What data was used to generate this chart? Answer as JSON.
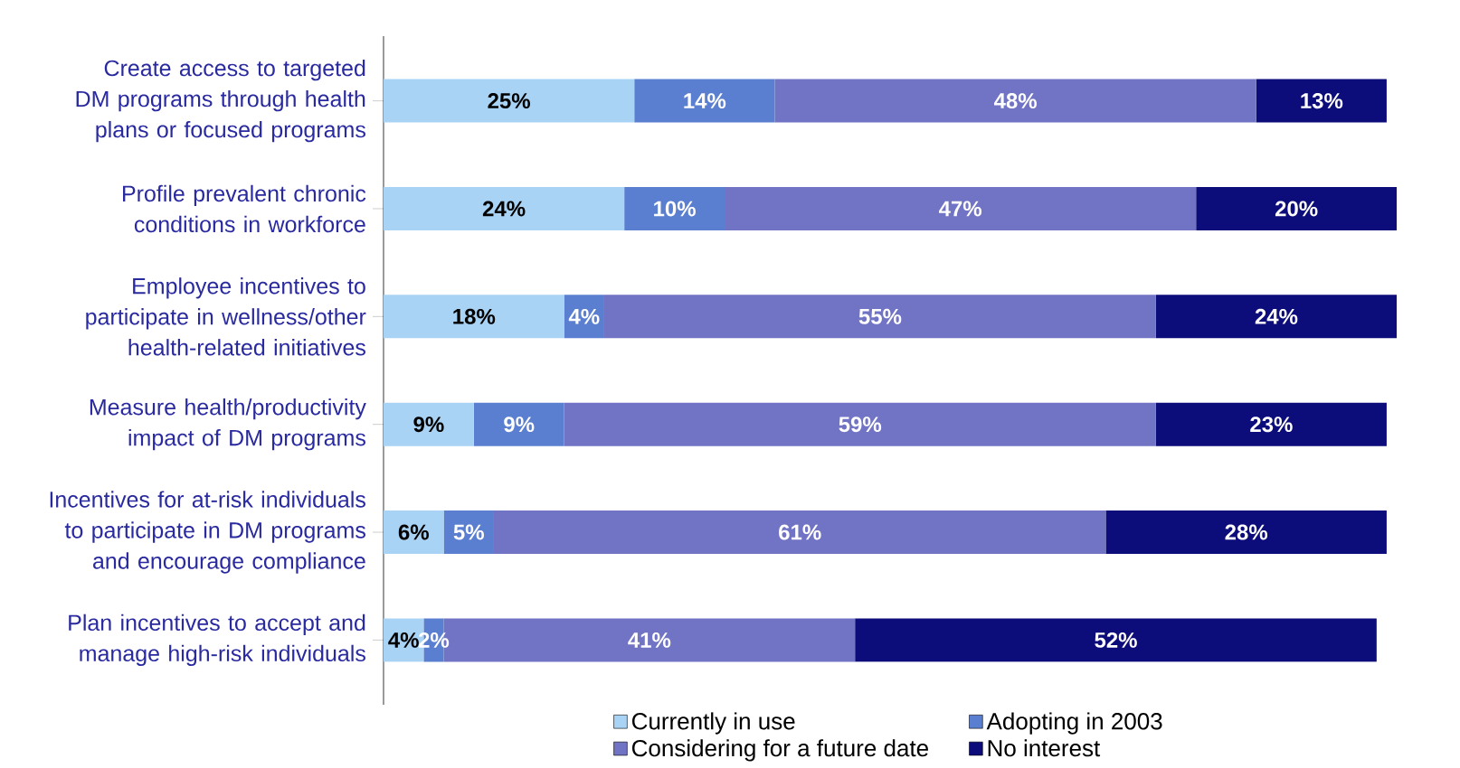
{
  "chart_data": {
    "type": "bar",
    "orientation": "horizontal",
    "stacked": true,
    "legend": "bottom",
    "tick_labels": "y",
    "xlim": [
      0,
      101
    ],
    "categories": [
      "Create access to targeted DM programs through health plans or focused programs",
      "Profile prevalent chronic conditions in workforce",
      "Employee incentives to participate in wellness/other health-related initiatives",
      "Measure health/productivity impact of DM programs",
      "Incentives for at-risk individuals to participate in DM programs and encourage compliance",
      "Plan incentives to accept and manage high-risk individuals"
    ],
    "series": [
      {
        "name": "Currently in use",
        "color": "#a9d3f5",
        "values": [
          25,
          24,
          18,
          9,
          6,
          4
        ],
        "value_labels": [
          "25%",
          "24%",
          "18%",
          "9%",
          "6%",
          "4%"
        ]
      },
      {
        "name": "Adopting in 2003",
        "color": "#5b7fd0",
        "values": [
          14,
          10,
          4,
          9,
          5,
          2
        ],
        "value_labels": [
          "14%",
          "10%",
          "4%",
          "9%",
          "5%",
          "2%"
        ]
      },
      {
        "name": "Considering for a future date",
        "color": "#7173c4",
        "values": [
          48,
          47,
          55,
          59,
          61,
          41
        ],
        "value_labels": [
          "48%",
          "47%",
          "55%",
          "59%",
          "61%",
          "41%"
        ]
      },
      {
        "name": "No interest",
        "color": "#0c0c7a",
        "values": [
          13,
          20,
          24,
          23,
          28,
          52
        ],
        "value_labels": [
          "13%",
          "20%",
          "24%",
          "23%",
          "28%",
          "52%"
        ]
      }
    ]
  }
}
